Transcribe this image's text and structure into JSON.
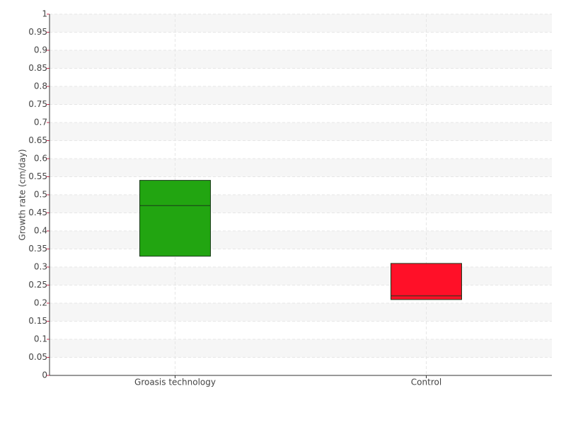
{
  "chart_data": {
    "type": "box",
    "y_label": "Growth rate (cm/day)",
    "categories": [
      "Groasis technology",
      "Control"
    ],
    "q1": [
      0.33,
      0.21
    ],
    "median": [
      0.47,
      0.22
    ],
    "q3": [
      0.54,
      0.31
    ],
    "colors": [
      "#22a511",
      "#ff1028"
    ],
    "ylim": [
      0,
      1
    ],
    "yticks": [
      0,
      0.05,
      0.1,
      0.15,
      0.2,
      0.25,
      0.3,
      0.35,
      0.4,
      0.45,
      0.5,
      0.55,
      0.6,
      0.65,
      0.7,
      0.75,
      0.8,
      0.85,
      0.9,
      0.95,
      1
    ],
    "grid": true
  }
}
